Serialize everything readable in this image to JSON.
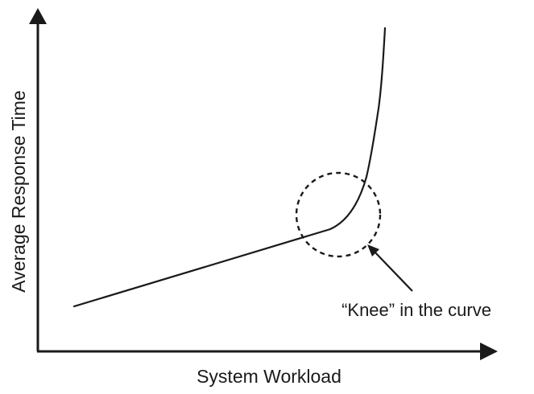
{
  "chart_data": {
    "type": "line",
    "title": "",
    "xlabel": "System Workload",
    "ylabel": "Average Response Time",
    "grid": false,
    "annotation": "“Knee” in the curve"
  }
}
